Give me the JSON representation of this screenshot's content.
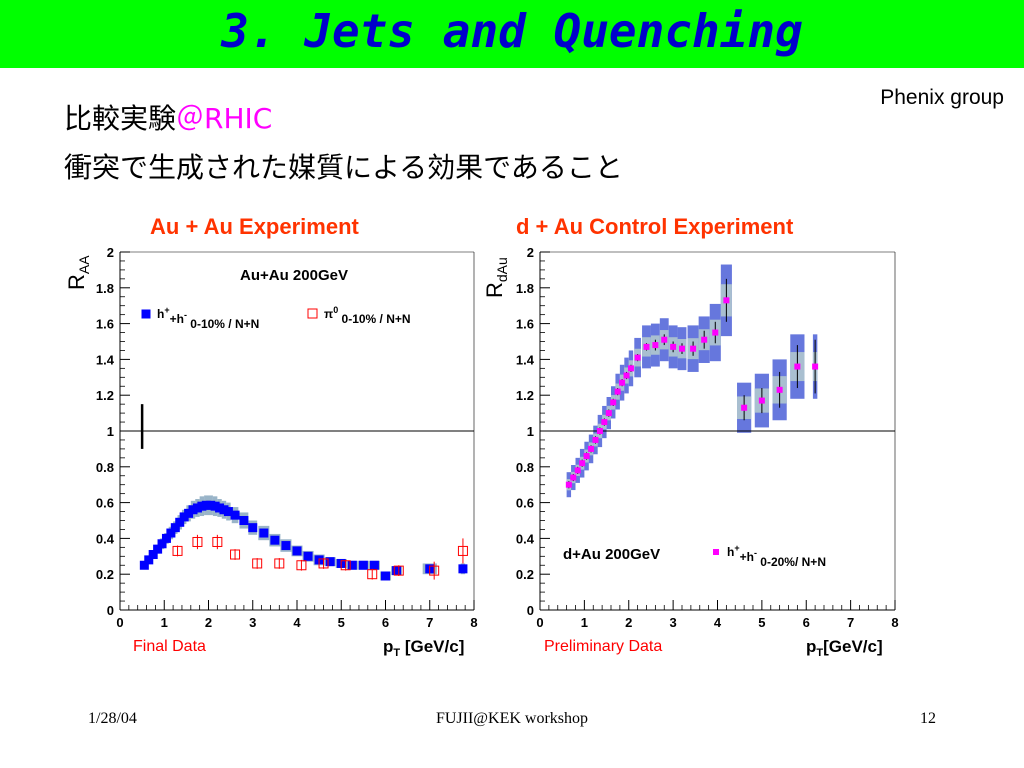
{
  "slide": {
    "title": "3. Jets and Quenching",
    "credit": "Phenix group",
    "line1_text": "比較実験",
    "line1_accent": "＠RHIC",
    "line2": "衝突で生成された媒質による効果であること",
    "panel_left_title": "Au + Au Experiment",
    "panel_right_title": "d + Au Control Experiment",
    "panel_left_tag": "Final Data",
    "panel_right_tag": "Preliminary Data",
    "footer_date": "1/28/04",
    "footer_center": "FUJII@KEK workshop",
    "footer_page": "12"
  },
  "colors": {
    "banner": "#00ff00",
    "title": "#0000cc",
    "accent": "#ff00ff",
    "panel_title": "#ff3300",
    "tag": "#ff0000"
  },
  "chart_data": [
    {
      "type": "scatter",
      "ylabel": "R",
      "ylabel_sub": "AA",
      "xlabel": "p",
      "xlabel_sub": "T",
      "xlabel_unit": " [GeV/c]",
      "xlim": [
        0,
        8
      ],
      "ylim": [
        0,
        2
      ],
      "x_ticks": [
        "0",
        "1",
        "2",
        "3",
        "4",
        "5",
        "6",
        "7",
        "8"
      ],
      "y_ticks": [
        "0",
        "0.2",
        "0.4",
        "0.6",
        "0.8",
        "1",
        "1.2",
        "1.4",
        "1.6",
        "1.8",
        "2"
      ],
      "reference_line": 1,
      "annotation": "Au+Au 200GeV",
      "norm_uncertainty_bar": {
        "x": 0.5,
        "y_low": 0.9,
        "y_high": 1.15
      },
      "series": [
        {
          "name_prefix": "h",
          "name_sup1": "+",
          "name_mid": "+h",
          "name_sup2": "-",
          "name_rest": " 0-10% / N+N",
          "marker": "filled-square",
          "color": "#0000ff",
          "band_color": "#99b4c8",
          "x": [
            0.55,
            0.65,
            0.75,
            0.85,
            0.95,
            1.05,
            1.15,
            1.25,
            1.35,
            1.45,
            1.55,
            1.65,
            1.75,
            1.85,
            1.95,
            2.05,
            2.15,
            2.25,
            2.35,
            2.45,
            2.6,
            2.8,
            3.0,
            3.25,
            3.5,
            3.75,
            4.0,
            4.25,
            4.5,
            4.75,
            5.0,
            5.25,
            5.5,
            5.75,
            6.0,
            6.25,
            7.0,
            7.75
          ],
          "y": [
            0.25,
            0.28,
            0.31,
            0.34,
            0.37,
            0.4,
            0.43,
            0.46,
            0.49,
            0.52,
            0.54,
            0.56,
            0.57,
            0.58,
            0.585,
            0.585,
            0.58,
            0.57,
            0.56,
            0.55,
            0.53,
            0.5,
            0.46,
            0.43,
            0.39,
            0.36,
            0.33,
            0.3,
            0.28,
            0.27,
            0.26,
            0.25,
            0.25,
            0.25,
            0.19,
            0.22,
            0.23,
            0.23
          ],
          "band_err": [
            0.02,
            0.02,
            0.025,
            0.025,
            0.03,
            0.03,
            0.035,
            0.035,
            0.04,
            0.04,
            0.045,
            0.05,
            0.05,
            0.055,
            0.055,
            0.055,
            0.055,
            0.05,
            0.05,
            0.05,
            0.045,
            0.045,
            0.04,
            0.04,
            0.035,
            0.035,
            0.03,
            0.03,
            0.03,
            0.025,
            0.025,
            0.025,
            0.025,
            0.025,
            0.025,
            0.025,
            0.03,
            0.03
          ]
        },
        {
          "name_prefix": "π",
          "name_sup1": "0",
          "name_rest": " 0-10% / N+N",
          "marker": "open-square",
          "color": "#ff0000",
          "x": [
            1.3,
            1.75,
            2.2,
            2.6,
            3.1,
            3.6,
            4.1,
            4.6,
            5.1,
            5.7,
            6.3,
            7.1,
            7.75
          ],
          "y": [
            0.33,
            0.38,
            0.38,
            0.31,
            0.26,
            0.26,
            0.25,
            0.26,
            0.25,
            0.2,
            0.22,
            0.22,
            0.33
          ],
          "err": [
            0.03,
            0.04,
            0.04,
            0.03,
            0.03,
            0.03,
            0.03,
            0.03,
            0.03,
            0.03,
            0.03,
            0.05,
            0.07
          ]
        }
      ]
    },
    {
      "type": "scatter",
      "ylabel": "R",
      "ylabel_sub": "dAu",
      "xlabel": "p",
      "xlabel_sub": "T",
      "xlabel_unit": "[GeV/c]",
      "xlim": [
        0,
        8
      ],
      "ylim": [
        0,
        2
      ],
      "x_ticks": [
        "0",
        "1",
        "2",
        "3",
        "4",
        "5",
        "6",
        "7",
        "8"
      ],
      "y_ticks": [
        "0",
        "0.2",
        "0.4",
        "0.6",
        "0.8",
        "1",
        "1.2",
        "1.4",
        "1.6",
        "1.8",
        "2"
      ],
      "reference_line": 1,
      "annotation": "d+Au 200GeV",
      "series": [
        {
          "name_prefix": "h",
          "name_sup1": "+",
          "name_mid": "+h",
          "name_sup2": "-",
          "name_rest": " 0-20%/ N+N",
          "marker": "filled-square",
          "color": "#ff00ff",
          "band_color": "#6677dd",
          "band_inner": "#a9bfd0",
          "x": [
            0.65,
            0.75,
            0.85,
            0.95,
            1.05,
            1.15,
            1.25,
            1.35,
            1.45,
            1.55,
            1.65,
            1.75,
            1.85,
            1.95,
            2.05,
            2.2,
            2.4,
            2.6,
            2.8,
            3.0,
            3.2,
            3.45,
            3.7,
            3.95,
            4.2,
            4.6,
            5.0,
            5.4,
            5.8,
            6.2
          ],
          "y": [
            0.7,
            0.74,
            0.78,
            0.82,
            0.86,
            0.9,
            0.95,
            1.0,
            1.05,
            1.1,
            1.16,
            1.22,
            1.27,
            1.31,
            1.35,
            1.41,
            1.47,
            1.48,
            1.51,
            1.47,
            1.46,
            1.46,
            1.51,
            1.55,
            1.73,
            1.13,
            1.17,
            1.23,
            1.36,
            1.36
          ],
          "band_err": [
            0.07,
            0.07,
            0.07,
            0.08,
            0.08,
            0.08,
            0.08,
            0.09,
            0.09,
            0.09,
            0.09,
            0.1,
            0.1,
            0.1,
            0.1,
            0.11,
            0.12,
            0.12,
            0.12,
            0.12,
            0.12,
            0.13,
            0.13,
            0.16,
            0.2,
            0.14,
            0.15,
            0.17,
            0.18,
            0.18
          ],
          "err": [
            0.02,
            0.02,
            0.02,
            0.02,
            0.02,
            0.02,
            0.02,
            0.02,
            0.02,
            0.02,
            0.02,
            0.02,
            0.02,
            0.02,
            0.02,
            0.02,
            0.02,
            0.03,
            0.03,
            0.03,
            0.03,
            0.04,
            0.05,
            0.06,
            0.12,
            0.07,
            0.07,
            0.1,
            0.12,
            0.15
          ]
        }
      ]
    }
  ]
}
